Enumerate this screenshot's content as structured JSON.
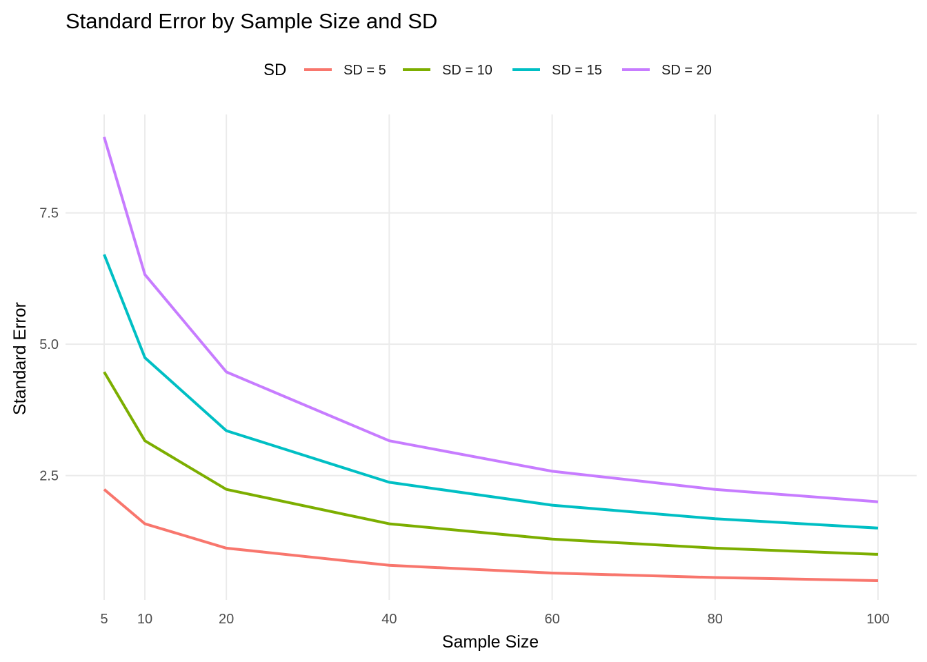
{
  "chart_data": {
    "type": "line",
    "title": "Standard Error by Sample Size and SD",
    "xlabel": "Sample Size",
    "ylabel": "Standard Error",
    "x": [
      5,
      10,
      20,
      40,
      60,
      80,
      100
    ],
    "xlim": [
      5,
      100
    ],
    "ylim": [
      0.5,
      8.94
    ],
    "x_ticks": [
      5,
      10,
      20,
      40,
      60,
      80,
      100
    ],
    "x_tick_labels": [
      "5",
      "10",
      "20",
      "40",
      "60",
      "80",
      "100"
    ],
    "y_ticks": [
      2.5,
      5.0,
      7.5
    ],
    "y_tick_labels": [
      "2.5",
      "5.0",
      "7.5"
    ],
    "grid": true,
    "legend": {
      "title": "SD",
      "position": "top"
    },
    "series": [
      {
        "name": "SD = 5",
        "color": "#F8766D",
        "values": [
          2.236,
          1.581,
          1.118,
          0.791,
          0.645,
          0.559,
          0.5
        ]
      },
      {
        "name": "SD = 10",
        "color": "#7CAE00",
        "values": [
          4.472,
          3.162,
          2.236,
          1.581,
          1.291,
          1.118,
          1.0
        ]
      },
      {
        "name": "SD = 15",
        "color": "#00BFC4",
        "values": [
          6.708,
          4.743,
          3.354,
          2.372,
          1.936,
          1.677,
          1.5
        ]
      },
      {
        "name": "SD = 20",
        "color": "#C77CFF",
        "values": [
          8.944,
          6.325,
          4.472,
          3.162,
          2.582,
          2.236,
          2.0
        ]
      }
    ]
  }
}
